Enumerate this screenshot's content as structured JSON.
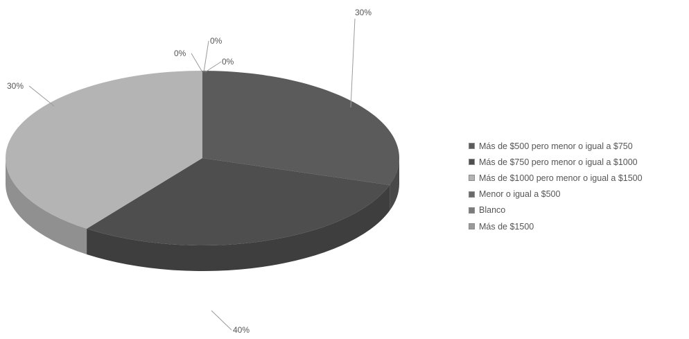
{
  "chart_data": {
    "type": "pie",
    "title": "",
    "categories": [
      "Más de $500 pero menor o igual a $750",
      "Más de $750 pero menor o igual a $1000",
      "Más de $1000 pero menor o igual a $1500",
      "Menor o igual a $500",
      "Blanco",
      "Más de $1500"
    ],
    "values": [
      30,
      30,
      40,
      0,
      0,
      0
    ],
    "data_labels": [
      "30%",
      "30%",
      "40%",
      "0%",
      "0%",
      "0%"
    ],
    "colors": [
      "#5b5b5b",
      "#4e4e4e",
      "#b4b4b4",
      "#6a6a6a",
      "#7c7c7c",
      "#9a9a9a"
    ],
    "three_d": true,
    "legend_position": "right"
  }
}
